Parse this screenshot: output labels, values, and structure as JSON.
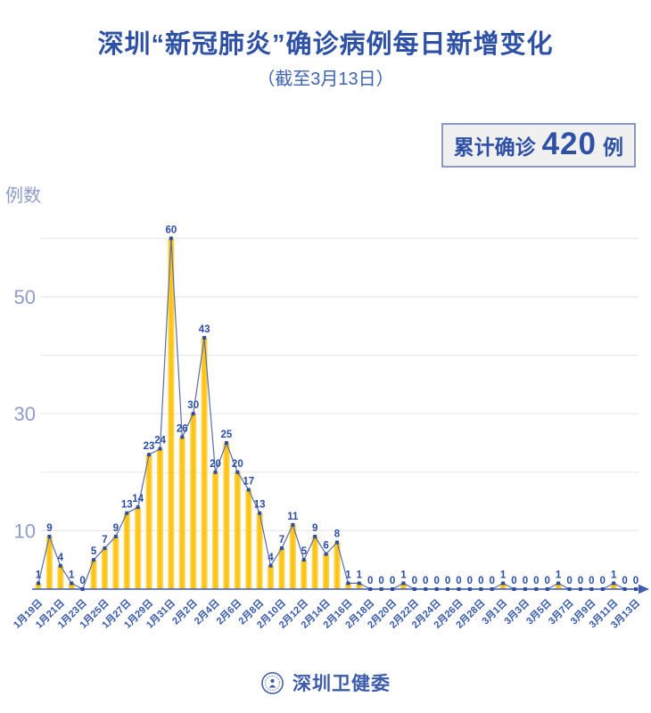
{
  "header": {
    "title": "深圳“新冠肺炎”确诊病例每日新增变化",
    "subtitle": "（截至3月13日）"
  },
  "badge": {
    "prefix": "累计确诊",
    "value": "420",
    "unit": "例"
  },
  "footer": {
    "org": "深圳卫健委",
    "logo": "shenzhen-health-commission-emblem"
  },
  "chart_data": {
    "type": "bar+line",
    "title": "深圳“新冠肺炎”确诊病例每日新增变化",
    "ylabel": "例数",
    "xlabel": "",
    "ylim": [
      0,
      62
    ],
    "y_tick_labels": [
      10,
      30,
      50
    ],
    "grid_values": [
      10,
      20,
      30,
      40,
      50,
      60
    ],
    "grid": true,
    "legend": "none",
    "x_tick_every": 2,
    "categories": [
      "1月19日",
      "1月20日",
      "1月21日",
      "1月22日",
      "1月23日",
      "1月24日",
      "1月25日",
      "1月26日",
      "1月27日",
      "1月28日",
      "1月29日",
      "1月30日",
      "1月31日",
      "2月1日",
      "2月2日",
      "2月3日",
      "2月4日",
      "2月5日",
      "2月6日",
      "2月7日",
      "2月8日",
      "2月9日",
      "2月10日",
      "2月11日",
      "2月12日",
      "2月13日",
      "2月14日",
      "2月15日",
      "2月16日",
      "2月17日",
      "2月18日",
      "2月19日",
      "2月20日",
      "2月21日",
      "2月22日",
      "2月23日",
      "2月24日",
      "2月25日",
      "2月26日",
      "2月27日",
      "2月28日",
      "2月29日",
      "3月1日",
      "3月2日",
      "3月3日",
      "3月4日",
      "3月5日",
      "3月6日",
      "3月7日",
      "3月8日",
      "3月9日",
      "3月10日",
      "3月11日",
      "3月12日",
      "3月13日"
    ],
    "x_tick_labels": [
      "1月19日",
      "1月21日",
      "1月23日",
      "1月25日",
      "1月27日",
      "1月29日",
      "1月31日",
      "2月2日",
      "2月4日",
      "2月6日",
      "2月8日",
      "2月10日",
      "2月12日",
      "2月14日",
      "2月16日",
      "2月18日",
      "2月20日",
      "2月22日",
      "2月24日",
      "2月26日",
      "2月28日",
      "3月1日",
      "3月3日",
      "3月5日",
      "3月7日",
      "3月9日",
      "3月11日",
      "3月13日"
    ],
    "values": [
      1,
      9,
      4,
      1,
      0,
      5,
      7,
      9,
      13,
      14,
      23,
      24,
      60,
      26,
      30,
      43,
      20,
      25,
      20,
      17,
      13,
      4,
      7,
      11,
      5,
      9,
      6,
      8,
      1,
      1,
      0,
      0,
      0,
      1,
      0,
      0,
      0,
      0,
      0,
      0,
      0,
      0,
      1,
      0,
      0,
      0,
      0,
      1,
      0,
      0,
      0,
      0,
      1,
      0,
      0
    ],
    "colors": {
      "bar": "#fcc103",
      "bar_edge": "#ffd65c",
      "line": "#5b6caa",
      "marker": "#2e4d9e",
      "point_label": "#2a4da5",
      "axis": "#3f5cad",
      "grid": "#e8e8ee",
      "y_tick_text": "#8f9ccc",
      "x_tick_text": "#3558ab",
      "title": "#2e51a6"
    }
  }
}
